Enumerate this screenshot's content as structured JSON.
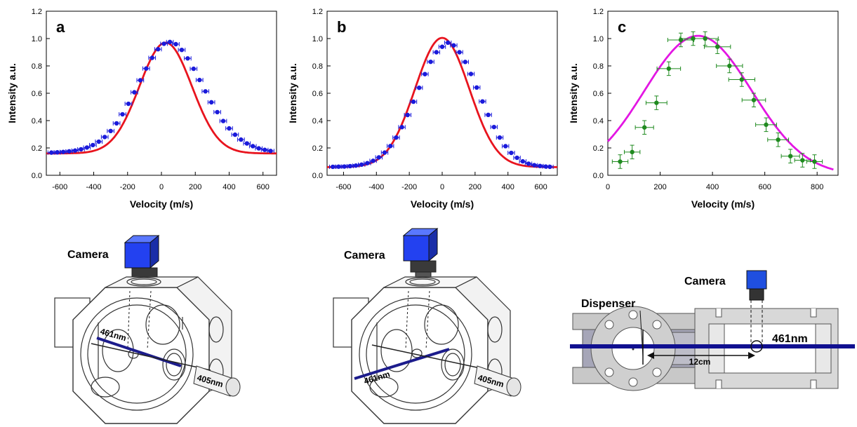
{
  "chart_data": [
    {
      "type": "scatter",
      "panel_label": "a",
      "xlabel": "Velocity (m/s)",
      "ylabel": "Intensity a.u.",
      "xlim": [
        -680,
        680
      ],
      "ylim": [
        0.0,
        1.2
      ],
      "xticks": [
        -600,
        -400,
        -200,
        0,
        200,
        400,
        600
      ],
      "yticks": [
        0.0,
        0.2,
        0.4,
        0.6,
        0.8,
        1.0,
        1.2
      ],
      "point_color": "#1a1adb",
      "fit_color": "#e8141e",
      "points_x": [
        -650,
        -615,
        -580,
        -545,
        -510,
        -475,
        -440,
        -405,
        -370,
        -335,
        -300,
        -265,
        -230,
        -195,
        -160,
        -125,
        -90,
        -55,
        -20,
        15,
        50,
        85,
        120,
        155,
        190,
        225,
        260,
        295,
        330,
        365,
        400,
        435,
        470,
        505,
        540,
        575,
        610,
        645
      ],
      "points_y": [
        0.166,
        0.168,
        0.171,
        0.175,
        0.181,
        0.19,
        0.203,
        0.221,
        0.246,
        0.28,
        0.324,
        0.38,
        0.446,
        0.523,
        0.607,
        0.695,
        0.781,
        0.859,
        0.922,
        0.962,
        0.975,
        0.959,
        0.917,
        0.855,
        0.779,
        0.697,
        0.614,
        0.534,
        0.462,
        0.397,
        0.343,
        0.297,
        0.261,
        0.233,
        0.213,
        0.197,
        0.186,
        0.178
      ],
      "x_err": 20,
      "fit": {
        "model": "gaussian",
        "offset": 0.16,
        "amplitude": 0.81,
        "center": 25,
        "sigma": 155
      }
    },
    {
      "type": "scatter",
      "panel_label": "b",
      "xlabel": "Velocity (m/s)",
      "ylabel": "Intensity a.u.",
      "xlim": [
        -700,
        700
      ],
      "ylim": [
        0.0,
        1.2
      ],
      "xticks": [
        -600,
        -400,
        -200,
        0,
        200,
        400,
        600
      ],
      "yticks": [
        0.0,
        0.2,
        0.4,
        0.6,
        0.8,
        1.0,
        1.2
      ],
      "point_color": "#1a1adb",
      "fit_color": "#e8141e",
      "points_x": [
        -665,
        -630,
        -595,
        -560,
        -525,
        -490,
        -455,
        -420,
        -385,
        -350,
        -315,
        -280,
        -245,
        -210,
        -175,
        -140,
        -105,
        -70,
        -35,
        0,
        35,
        70,
        105,
        140,
        175,
        210,
        245,
        280,
        315,
        350,
        385,
        420,
        455,
        490,
        525,
        560,
        595,
        630,
        655
      ],
      "points_y": [
        0.062,
        0.063,
        0.064,
        0.067,
        0.071,
        0.078,
        0.089,
        0.106,
        0.131,
        0.166,
        0.214,
        0.276,
        0.352,
        0.441,
        0.538,
        0.64,
        0.74,
        0.83,
        0.9,
        0.94,
        0.97,
        0.95,
        0.9,
        0.829,
        0.741,
        0.642,
        0.54,
        0.442,
        0.353,
        0.276,
        0.213,
        0.164,
        0.128,
        0.102,
        0.085,
        0.074,
        0.068,
        0.064,
        0.062
      ],
      "x_err": 20,
      "fit": {
        "model": "gaussian",
        "offset": 0.06,
        "amplitude": 0.945,
        "center": 0,
        "sigma": 165
      }
    },
    {
      "type": "scatter",
      "panel_label": "c",
      "xlabel": "Velocity (m/s)",
      "ylabel": "Intensity a.u.",
      "xlim": [
        0,
        880
      ],
      "ylim": [
        0.0,
        1.2
      ],
      "xticks": [
        0,
        200,
        400,
        600,
        800
      ],
      "yticks": [
        0.0,
        0.2,
        0.4,
        0.6,
        0.8,
        1.0,
        1.2
      ],
      "point_color": "#1f8a1f",
      "fit_color": "#e316e3",
      "points_x": [
        47,
        93,
        140,
        186,
        233,
        279,
        326,
        372,
        419,
        465,
        512,
        558,
        605,
        651,
        698,
        744,
        790
      ],
      "points_y": [
        0.1,
        0.17,
        0.35,
        0.53,
        0.78,
        0.99,
        1.0,
        1.0,
        0.94,
        0.8,
        0.7,
        0.55,
        0.37,
        0.26,
        0.14,
        0.11,
        0.1
      ],
      "x_err": [
        30,
        30,
        35,
        40,
        45,
        50,
        50,
        50,
        50,
        50,
        50,
        45,
        40,
        40,
        35,
        30,
        30
      ],
      "y_err": 0.05,
      "fit": {
        "model": "gaussian",
        "offset": 0.0,
        "amplitude": 1.02,
        "center": 345,
        "sigma": 205
      }
    }
  ],
  "diagrams": {
    "a": {
      "camera_label": "Camera",
      "beam1_label": "461nm",
      "beam2_label": "405nm",
      "beam1_color": "#1c1c8c"
    },
    "b": {
      "camera_label": "Camera",
      "beam1_label": "461nm",
      "beam2_label": "405nm",
      "beam1_color": "#1c1c8c"
    },
    "c": {
      "camera_label": "Camera",
      "dispenser_label": "Dispenser",
      "beam_label": "461nm",
      "distance_label": "12cm",
      "beam_color": "#101090",
      "camera_color": "#1f4fe0"
    }
  }
}
